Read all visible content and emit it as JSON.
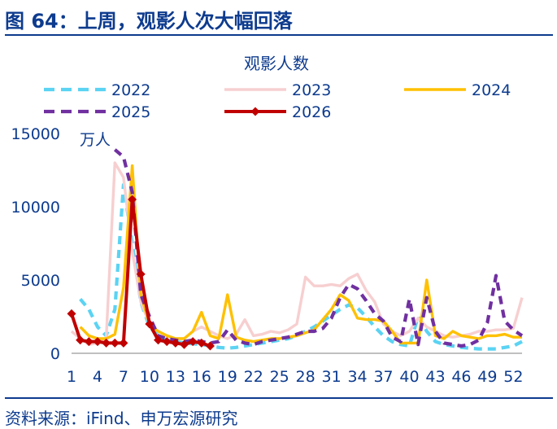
{
  "figure_title": "图 64：上周，观影人次大幅回落",
  "source": "资料来源：iFind、申万宏源研究",
  "chart_data": {
    "type": "line",
    "title": "观影人数",
    "unit_label": "万人",
    "xlabel": "",
    "ylabel": "",
    "ylim": [
      0,
      15000
    ],
    "yticks": [
      0,
      5000,
      10000,
      15000
    ],
    "xlim": [
      1,
      53
    ],
    "xticks": [
      1,
      4,
      7,
      10,
      13,
      16,
      19,
      22,
      25,
      28,
      31,
      34,
      37,
      40,
      43,
      46,
      49,
      52
    ],
    "grid": false,
    "legend_position": "top",
    "series": [
      {
        "name": "2022",
        "color": "#5bd3f3",
        "style": "dash",
        "marker": "none",
        "values": [
          null,
          3700,
          3000,
          1800,
          1200,
          3000,
          11500,
          7500,
          3500,
          1800,
          1200,
          900,
          800,
          700,
          650,
          600,
          500,
          400,
          350,
          400,
          500,
          600,
          700,
          800,
          900,
          1000,
          1200,
          1500,
          1800,
          2200,
          2600,
          3000,
          3300,
          3100,
          2500,
          1800,
          1200,
          800,
          600,
          500,
          2500,
          1500,
          800,
          600,
          500,
          400,
          350,
          300,
          300,
          300,
          400,
          500,
          800
        ]
      },
      {
        "name": "2023",
        "color": "#f7cfd0",
        "style": "solid",
        "marker": "none",
        "values": [
          1500,
          1000,
          600,
          700,
          1000,
          13000,
          12000,
          7000,
          3500,
          2000,
          1500,
          1200,
          1000,
          1000,
          1500,
          1800,
          1500,
          1200,
          1000,
          1300,
          2300,
          1200,
          1300,
          1500,
          1400,
          1600,
          2000,
          5200,
          4600,
          4600,
          4700,
          4600,
          5100,
          5400,
          4300,
          3500,
          2000,
          1500,
          1200,
          1500,
          2400,
          1800,
          1500,
          1200,
          1100,
          1200,
          1300,
          1500,
          1500,
          1600,
          1600,
          1700,
          3800
        ]
      },
      {
        "name": "2024",
        "color": "#ffc000",
        "style": "solid",
        "marker": "none",
        "values": [
          null,
          1800,
          1200,
          1000,
          1000,
          1300,
          4500,
          12800,
          4000,
          2000,
          1500,
          1200,
          1000,
          1000,
          1500,
          2800,
          1200,
          1000,
          4000,
          1100,
          900,
          800,
          900,
          1000,
          1000,
          1100,
          1200,
          1400,
          1600,
          2300,
          3000,
          4000,
          3600,
          2400,
          2300,
          2300,
          2200,
          1500,
          700,
          700,
          700,
          5000,
          1200,
          1000,
          1500,
          1200,
          1100,
          1000,
          1200,
          1200,
          1300,
          1100,
          1100
        ]
      },
      {
        "name": "2025",
        "color": "#7030a0",
        "style": "dash",
        "marker": "none",
        "values": [
          null,
          null,
          null,
          null,
          null,
          13900,
          13400,
          11000,
          4000,
          2500,
          1200,
          1000,
          900,
          800,
          900,
          800,
          700,
          800,
          1600,
          900,
          700,
          600,
          800,
          900,
          1000,
          1100,
          1300,
          1500,
          1500,
          1700,
          2400,
          3800,
          4700,
          4400,
          3600,
          2700,
          2200,
          1100,
          800,
          3700,
          600,
          3800,
          1500,
          700,
          600,
          500,
          600,
          900,
          2100,
          5300,
          2200,
          1600,
          1200
        ]
      },
      {
        "name": "2026",
        "color": "#c00000",
        "style": "solid",
        "marker": "diamond",
        "values": [
          2700,
          900,
          800,
          800,
          700,
          700,
          700,
          10500,
          5400,
          2000,
          900,
          800,
          700,
          600,
          800,
          700,
          500
        ]
      }
    ]
  }
}
